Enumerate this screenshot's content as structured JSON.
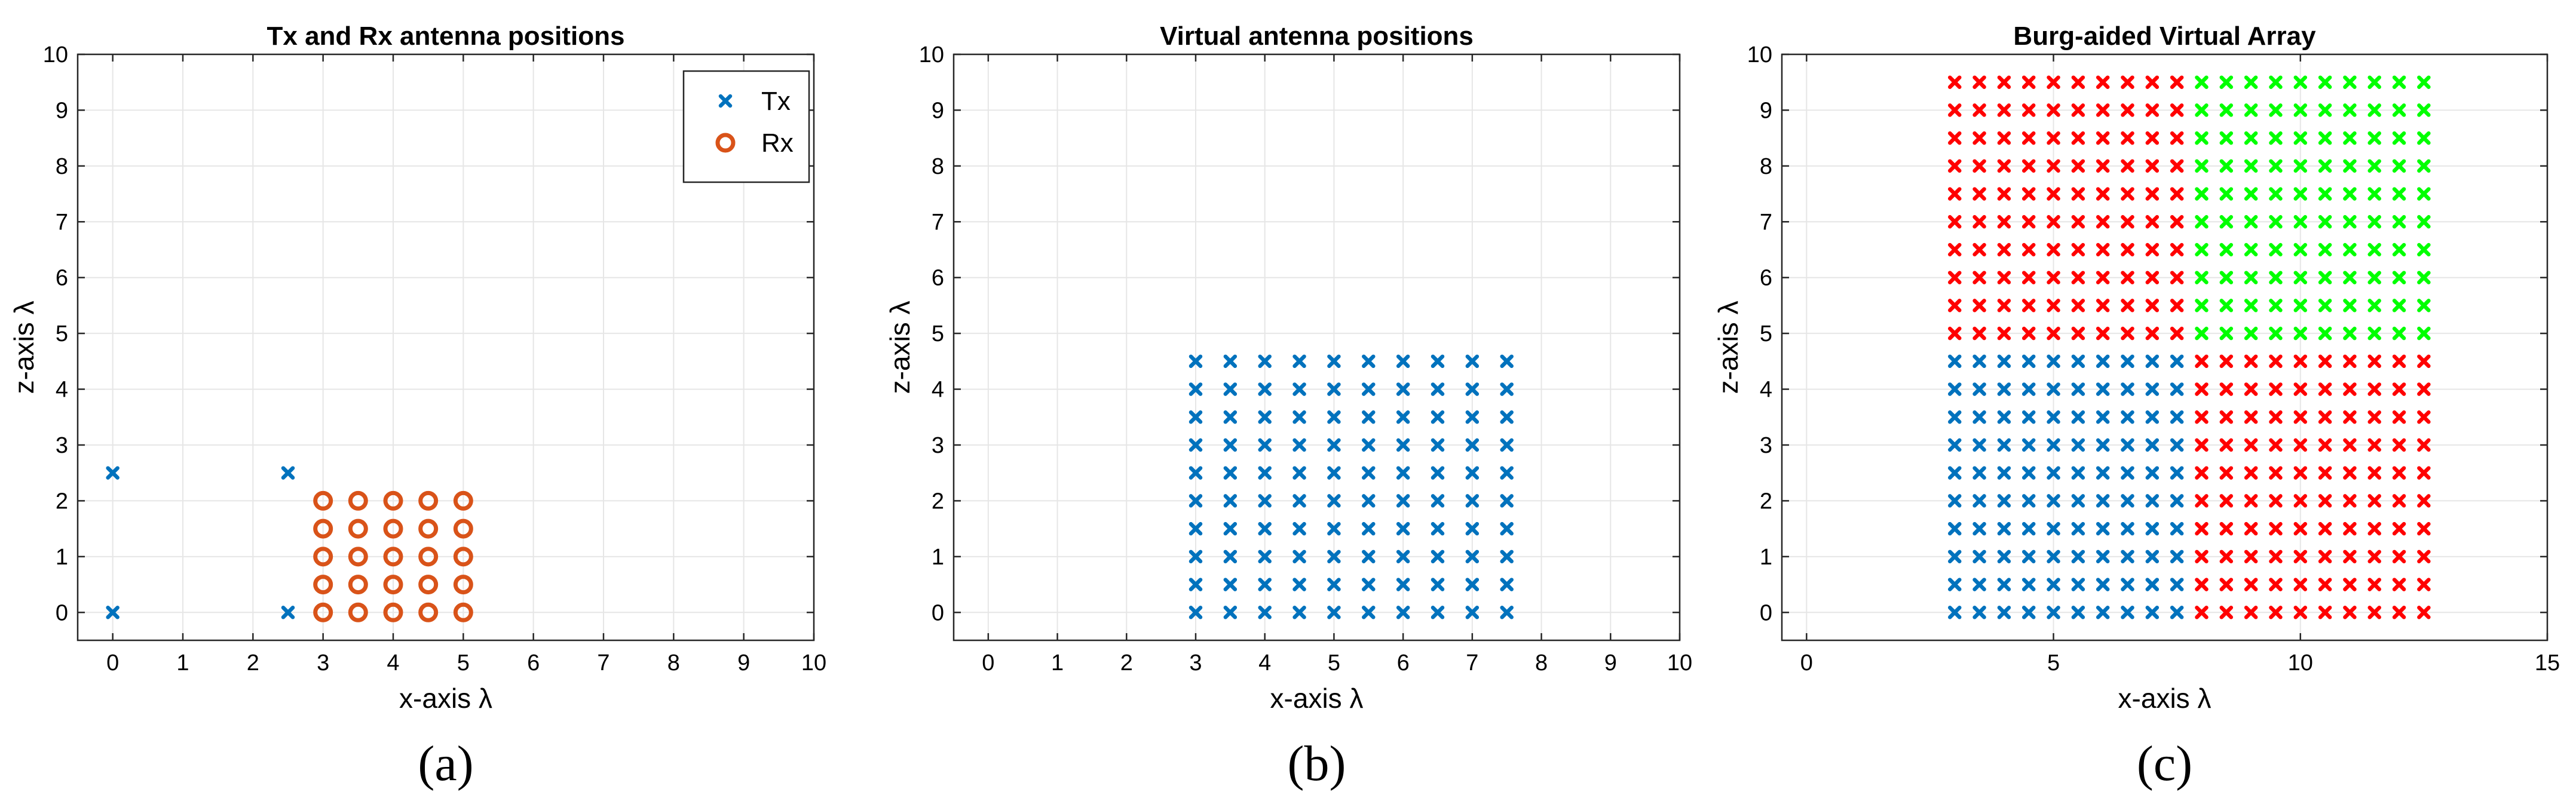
{
  "chart_data": [
    {
      "type": "scatter",
      "title": "Tx and Rx antenna positions",
      "xlabel": "x-axis λ",
      "ylabel": "z-axis λ",
      "xlim": [
        -0.5,
        10
      ],
      "ylim": [
        -0.5,
        10
      ],
      "xticks": [
        0,
        1,
        2,
        3,
        4,
        5,
        6,
        7,
        8,
        9,
        10
      ],
      "yticks": [
        0,
        1,
        2,
        3,
        4,
        5,
        6,
        7,
        8,
        9,
        10
      ],
      "grid": true,
      "legend_position": "top-right",
      "caption": "(a)",
      "series": [
        {
          "name": "Tx",
          "marker": "x",
          "color": "#0072BD",
          "points": [
            [
              0,
              0
            ],
            [
              0,
              2.5
            ],
            [
              2.5,
              0
            ],
            [
              2.5,
              2.5
            ]
          ]
        },
        {
          "name": "Rx",
          "marker": "o",
          "color": "#D95319",
          "grid_x": [
            3,
            3.5,
            4,
            4.5,
            5
          ],
          "grid_y": [
            0,
            0.5,
            1,
            1.5,
            2
          ]
        }
      ]
    },
    {
      "type": "scatter",
      "title": "Virtual antenna positions",
      "xlabel": "x-axis λ",
      "ylabel": "z-axis λ",
      "xlim": [
        -0.5,
        10
      ],
      "ylim": [
        -0.5,
        10
      ],
      "xticks": [
        0,
        1,
        2,
        3,
        4,
        5,
        6,
        7,
        8,
        9,
        10
      ],
      "yticks": [
        0,
        1,
        2,
        3,
        4,
        5,
        6,
        7,
        8,
        9,
        10
      ],
      "grid": true,
      "caption": "(b)",
      "series": [
        {
          "marker": "x",
          "color": "#0072BD",
          "grid_x": [
            3,
            3.5,
            4,
            4.5,
            5,
            5.5,
            6,
            6.5,
            7,
            7.5
          ],
          "grid_y": [
            0,
            0.5,
            1,
            1.5,
            2,
            2.5,
            3,
            3.5,
            4,
            4.5
          ]
        }
      ]
    },
    {
      "type": "scatter",
      "title": "Burg-aided Virtual Array",
      "xlabel": "x-axis λ",
      "ylabel": "z-axis λ",
      "xlim": [
        -0.5,
        15
      ],
      "ylim": [
        -0.5,
        10
      ],
      "xticks": [
        0,
        5,
        10,
        15
      ],
      "yticks": [
        0,
        1,
        2,
        3,
        4,
        5,
        6,
        7,
        8,
        9,
        10
      ],
      "grid": true,
      "caption": "(c)",
      "series": [
        {
          "marker": "x",
          "color": "#0072BD",
          "grid_x": [
            3,
            3.5,
            4,
            4.5,
            5,
            5.5,
            6,
            6.5,
            7,
            7.5
          ],
          "grid_y": [
            0,
            0.5,
            1,
            1.5,
            2,
            2.5,
            3,
            3.5,
            4,
            4.5
          ]
        },
        {
          "marker": "x",
          "color": "#FF0000",
          "grid_x": [
            8,
            8.5,
            9,
            9.5,
            10,
            10.5,
            11,
            11.5,
            12,
            12.5
          ],
          "grid_y": [
            0,
            0.5,
            1,
            1.5,
            2,
            2.5,
            3,
            3.5,
            4,
            4.5
          ]
        },
        {
          "marker": "x",
          "color": "#FF0000",
          "grid_x": [
            3,
            3.5,
            4,
            4.5,
            5,
            5.5,
            6,
            6.5,
            7,
            7.5
          ],
          "grid_y": [
            5,
            5.5,
            6,
            6.5,
            7,
            7.5,
            8,
            8.5,
            9,
            9.5
          ]
        },
        {
          "marker": "x",
          "color": "#00FF00",
          "grid_x": [
            8,
            8.5,
            9,
            9.5,
            10,
            10.5,
            11,
            11.5,
            12,
            12.5
          ],
          "grid_y": [
            5,
            5.5,
            6,
            6.5,
            7,
            7.5,
            8,
            8.5,
            9,
            9.5
          ]
        }
      ]
    }
  ]
}
